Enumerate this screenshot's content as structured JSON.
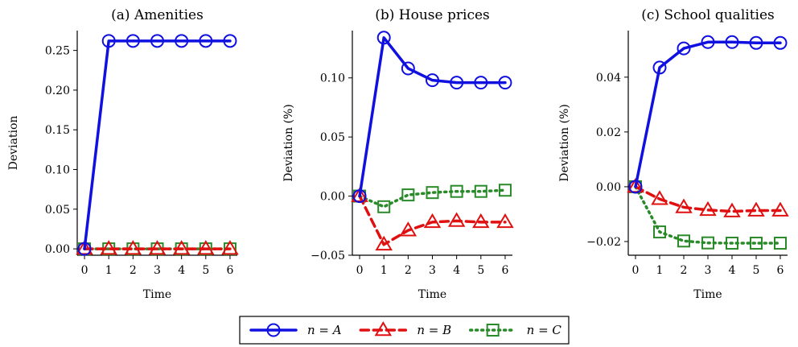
{
  "chart_data": [
    {
      "type": "line",
      "title": "(a) Amenities",
      "xlabel": "Time",
      "ylabel": "Deviation",
      "x": [
        0,
        1,
        2,
        3,
        4,
        5,
        6
      ],
      "xticks": [
        "0",
        "1",
        "2",
        "3",
        "4",
        "5",
        "6"
      ],
      "ylim": [
        -0.008,
        0.275
      ],
      "yticks": [
        0.0,
        0.05,
        0.1,
        0.15,
        0.2,
        0.25
      ],
      "ytick_labels": [
        "0.00",
        "0.05",
        "0.10",
        "0.15",
        "0.20",
        "0.25"
      ],
      "series": [
        {
          "key": "A",
          "values": [
            0,
            0.262,
            0.262,
            0.262,
            0.262,
            0.262,
            0.262
          ]
        },
        {
          "key": "B",
          "values": [
            0,
            0,
            0,
            0,
            0,
            0,
            0
          ]
        },
        {
          "key": "C",
          "values": [
            0,
            0,
            0,
            0,
            0,
            0,
            0
          ]
        }
      ]
    },
    {
      "type": "line",
      "title": "(b) House prices",
      "xlabel": "Time",
      "ylabel": "Deviation (%)",
      "x": [
        0,
        1,
        2,
        3,
        4,
        5,
        6
      ],
      "xticks": [
        "0",
        "1",
        "2",
        "3",
        "4",
        "5",
        "6"
      ],
      "ylim": [
        -0.05,
        0.14
      ],
      "yticks": [
        -0.05,
        0.0,
        0.05,
        0.1
      ],
      "ytick_labels": [
        "−0.05",
        "0.00",
        "0.05",
        "0.10"
      ],
      "series": [
        {
          "key": "A",
          "values": [
            0,
            0.134,
            0.108,
            0.098,
            0.096,
            0.096,
            0.096
          ]
        },
        {
          "key": "B",
          "values": [
            0,
            -0.041,
            -0.029,
            -0.022,
            -0.021,
            -0.022,
            -0.022
          ]
        },
        {
          "key": "C",
          "values": [
            0,
            -0.009,
            0.001,
            0.003,
            0.004,
            0.004,
            0.005
          ]
        }
      ]
    },
    {
      "type": "line",
      "title": "(c) School qualities",
      "xlabel": "Time",
      "ylabel": "Deviation (%)",
      "x": [
        0,
        1,
        2,
        3,
        4,
        5,
        6
      ],
      "xticks": [
        "0",
        "1",
        "2",
        "3",
        "4",
        "5",
        "6"
      ],
      "ylim": [
        -0.025,
        0.057
      ],
      "yticks": [
        -0.02,
        0.0,
        0.02,
        0.04
      ],
      "ytick_labels": [
        "−0.02",
        "0.00",
        "0.02",
        "0.04"
      ],
      "series": [
        {
          "key": "A",
          "values": [
            0,
            0.0435,
            0.0505,
            0.0528,
            0.0528,
            0.0525,
            0.0525
          ]
        },
        {
          "key": "B",
          "values": [
            0,
            -0.0045,
            -0.0075,
            -0.0085,
            -0.009,
            -0.0087,
            -0.0087
          ]
        },
        {
          "key": "C",
          "values": [
            0,
            -0.0165,
            -0.0198,
            -0.0205,
            -0.0206,
            -0.0206,
            -0.0206
          ]
        }
      ]
    }
  ],
  "legend": {
    "placement": "bottom-center",
    "items": [
      {
        "key": "A",
        "label": "n = A",
        "color": "#1010e0",
        "marker": "circle",
        "dash": "solid"
      },
      {
        "key": "B",
        "label": "n = B",
        "color": "#e01010",
        "marker": "triangle",
        "dash": "dashed"
      },
      {
        "key": "C",
        "label": "n = C",
        "color": "#2a8a2a",
        "marker": "square",
        "dash": "dotted"
      }
    ]
  }
}
